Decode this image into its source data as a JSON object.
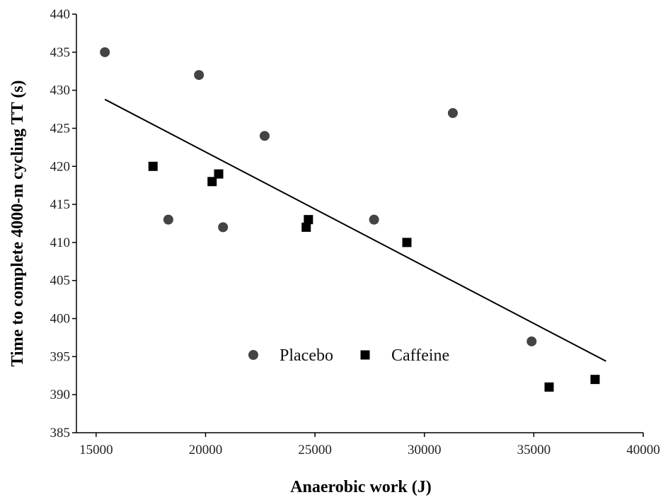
{
  "chart_data": {
    "type": "scatter",
    "xlabel": "Anaerobic work (J)",
    "ylabel": "Time to complete 4000-m cycling TT (s)",
    "xlim": [
      14100,
      40000
    ],
    "ylim": [
      385,
      440
    ],
    "xticks": [
      15000,
      20000,
      25000,
      30000,
      35000,
      40000
    ],
    "yticks": [
      385,
      390,
      395,
      400,
      405,
      410,
      415,
      420,
      425,
      430,
      435,
      440
    ],
    "series": [
      {
        "name": "Placebo",
        "color": "#444444",
        "marker": "circle",
        "x": [
          15400,
          19700,
          22700,
          31300,
          18300,
          20800,
          27700,
          34900
        ],
        "values": [
          435,
          432,
          424,
          427,
          413,
          412,
          413,
          397
        ]
      },
      {
        "name": "Caffeine",
        "color": "#000000",
        "marker": "square",
        "x": [
          17600,
          20300,
          20600,
          24600,
          24700,
          29200,
          35700,
          37800
        ],
        "values": [
          420,
          418,
          419,
          412,
          413,
          410,
          391,
          392
        ]
      }
    ],
    "trendline": {
      "x": [
        15400,
        38300
      ],
      "values": [
        428.8,
        394.4
      ],
      "color": "#000000"
    }
  }
}
